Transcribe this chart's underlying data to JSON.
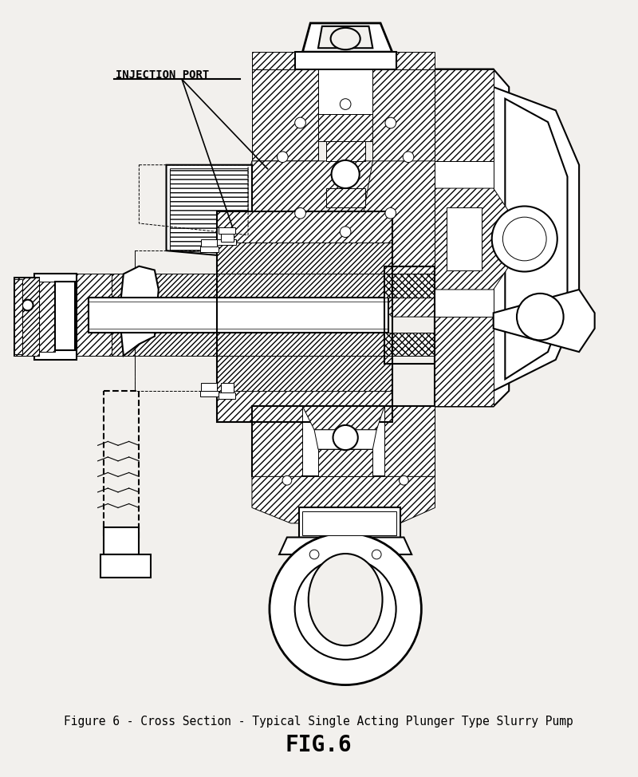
{
  "title": "Figure 6 - Cross Section - Typical Single Acting Plunger Type Slurry Pump",
  "fig_label": "FIG.6",
  "injection_port_label": "INJECTION PORT",
  "bg_color": "#f2f0ed",
  "line_color": "#000000",
  "title_fontsize": 10.5,
  "fig_label_fontsize": 20,
  "annotation_fontsize": 9,
  "figsize": [
    8.0,
    9.74
  ],
  "dpi": 100
}
